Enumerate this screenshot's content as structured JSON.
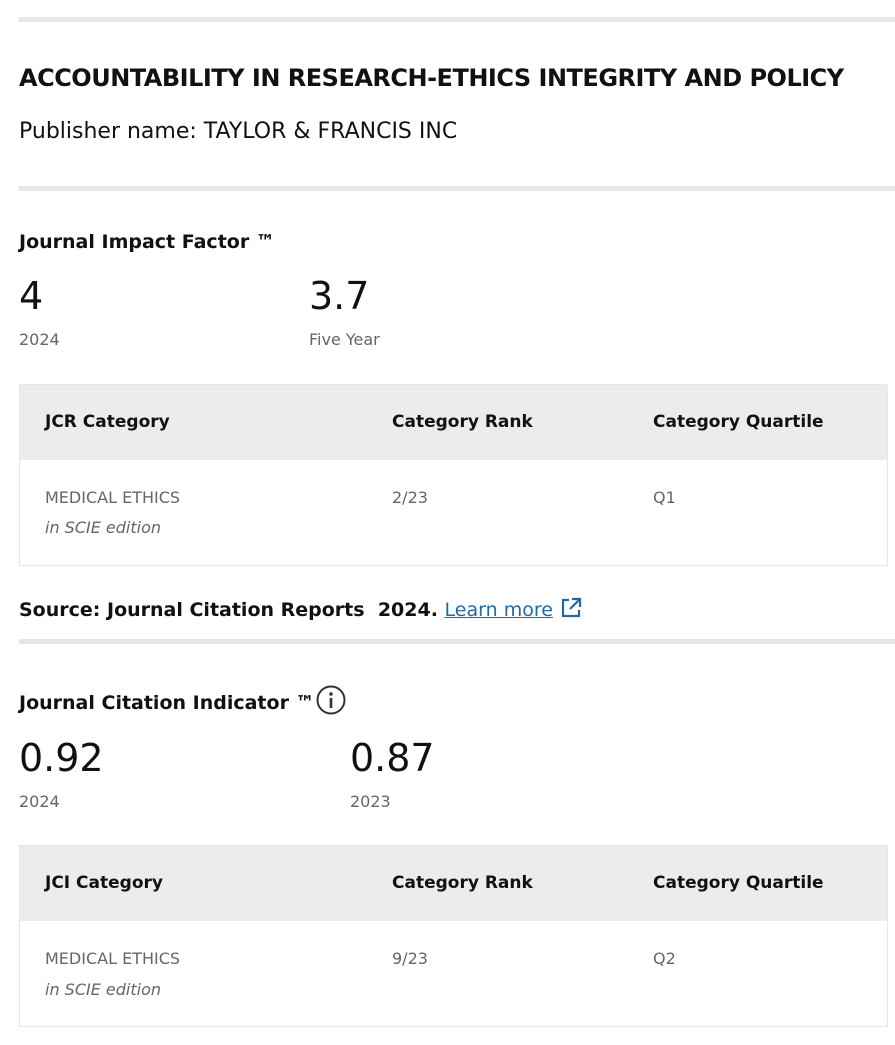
{
  "journal": {
    "title": "ACCOUNTABILITY IN RESEARCH-ETHICS INTEGRITY AND POLICY",
    "publisher_label": "Publisher name:",
    "publisher": "TAYLOR & FRANCIS INC"
  },
  "impact_factor": {
    "heading": "Journal Impact Factor ™",
    "metrics": [
      {
        "value": 4,
        "label": "2024"
      },
      {
        "value": 3.7,
        "label": "Five Year"
      }
    ],
    "table": {
      "headers": [
        "JCR Category",
        "Category Rank",
        "Category Quartile"
      ],
      "rows": [
        {
          "category": "MEDICAL ETHICS",
          "edition": "in SCIE edition",
          "rank": "2/23",
          "quartile": "Q1"
        }
      ]
    },
    "source": {
      "label": "Source: Journal Citation Reports",
      "year": "2024.",
      "link": "Learn more"
    }
  },
  "citation_indicator": {
    "heading": "Journal Citation Indicator ™",
    "metrics": [
      {
        "value": 0.92,
        "label": "2024"
      },
      {
        "value": 0.87,
        "label": "2023"
      }
    ],
    "table": {
      "headers": [
        "JCI Category",
        "Category Rank",
        "Category Quartile"
      ],
      "rows": [
        {
          "category": "MEDICAL ETHICS",
          "edition": "in SCIE edition",
          "rank": "9/23",
          "quartile": "Q2"
        }
      ]
    }
  }
}
